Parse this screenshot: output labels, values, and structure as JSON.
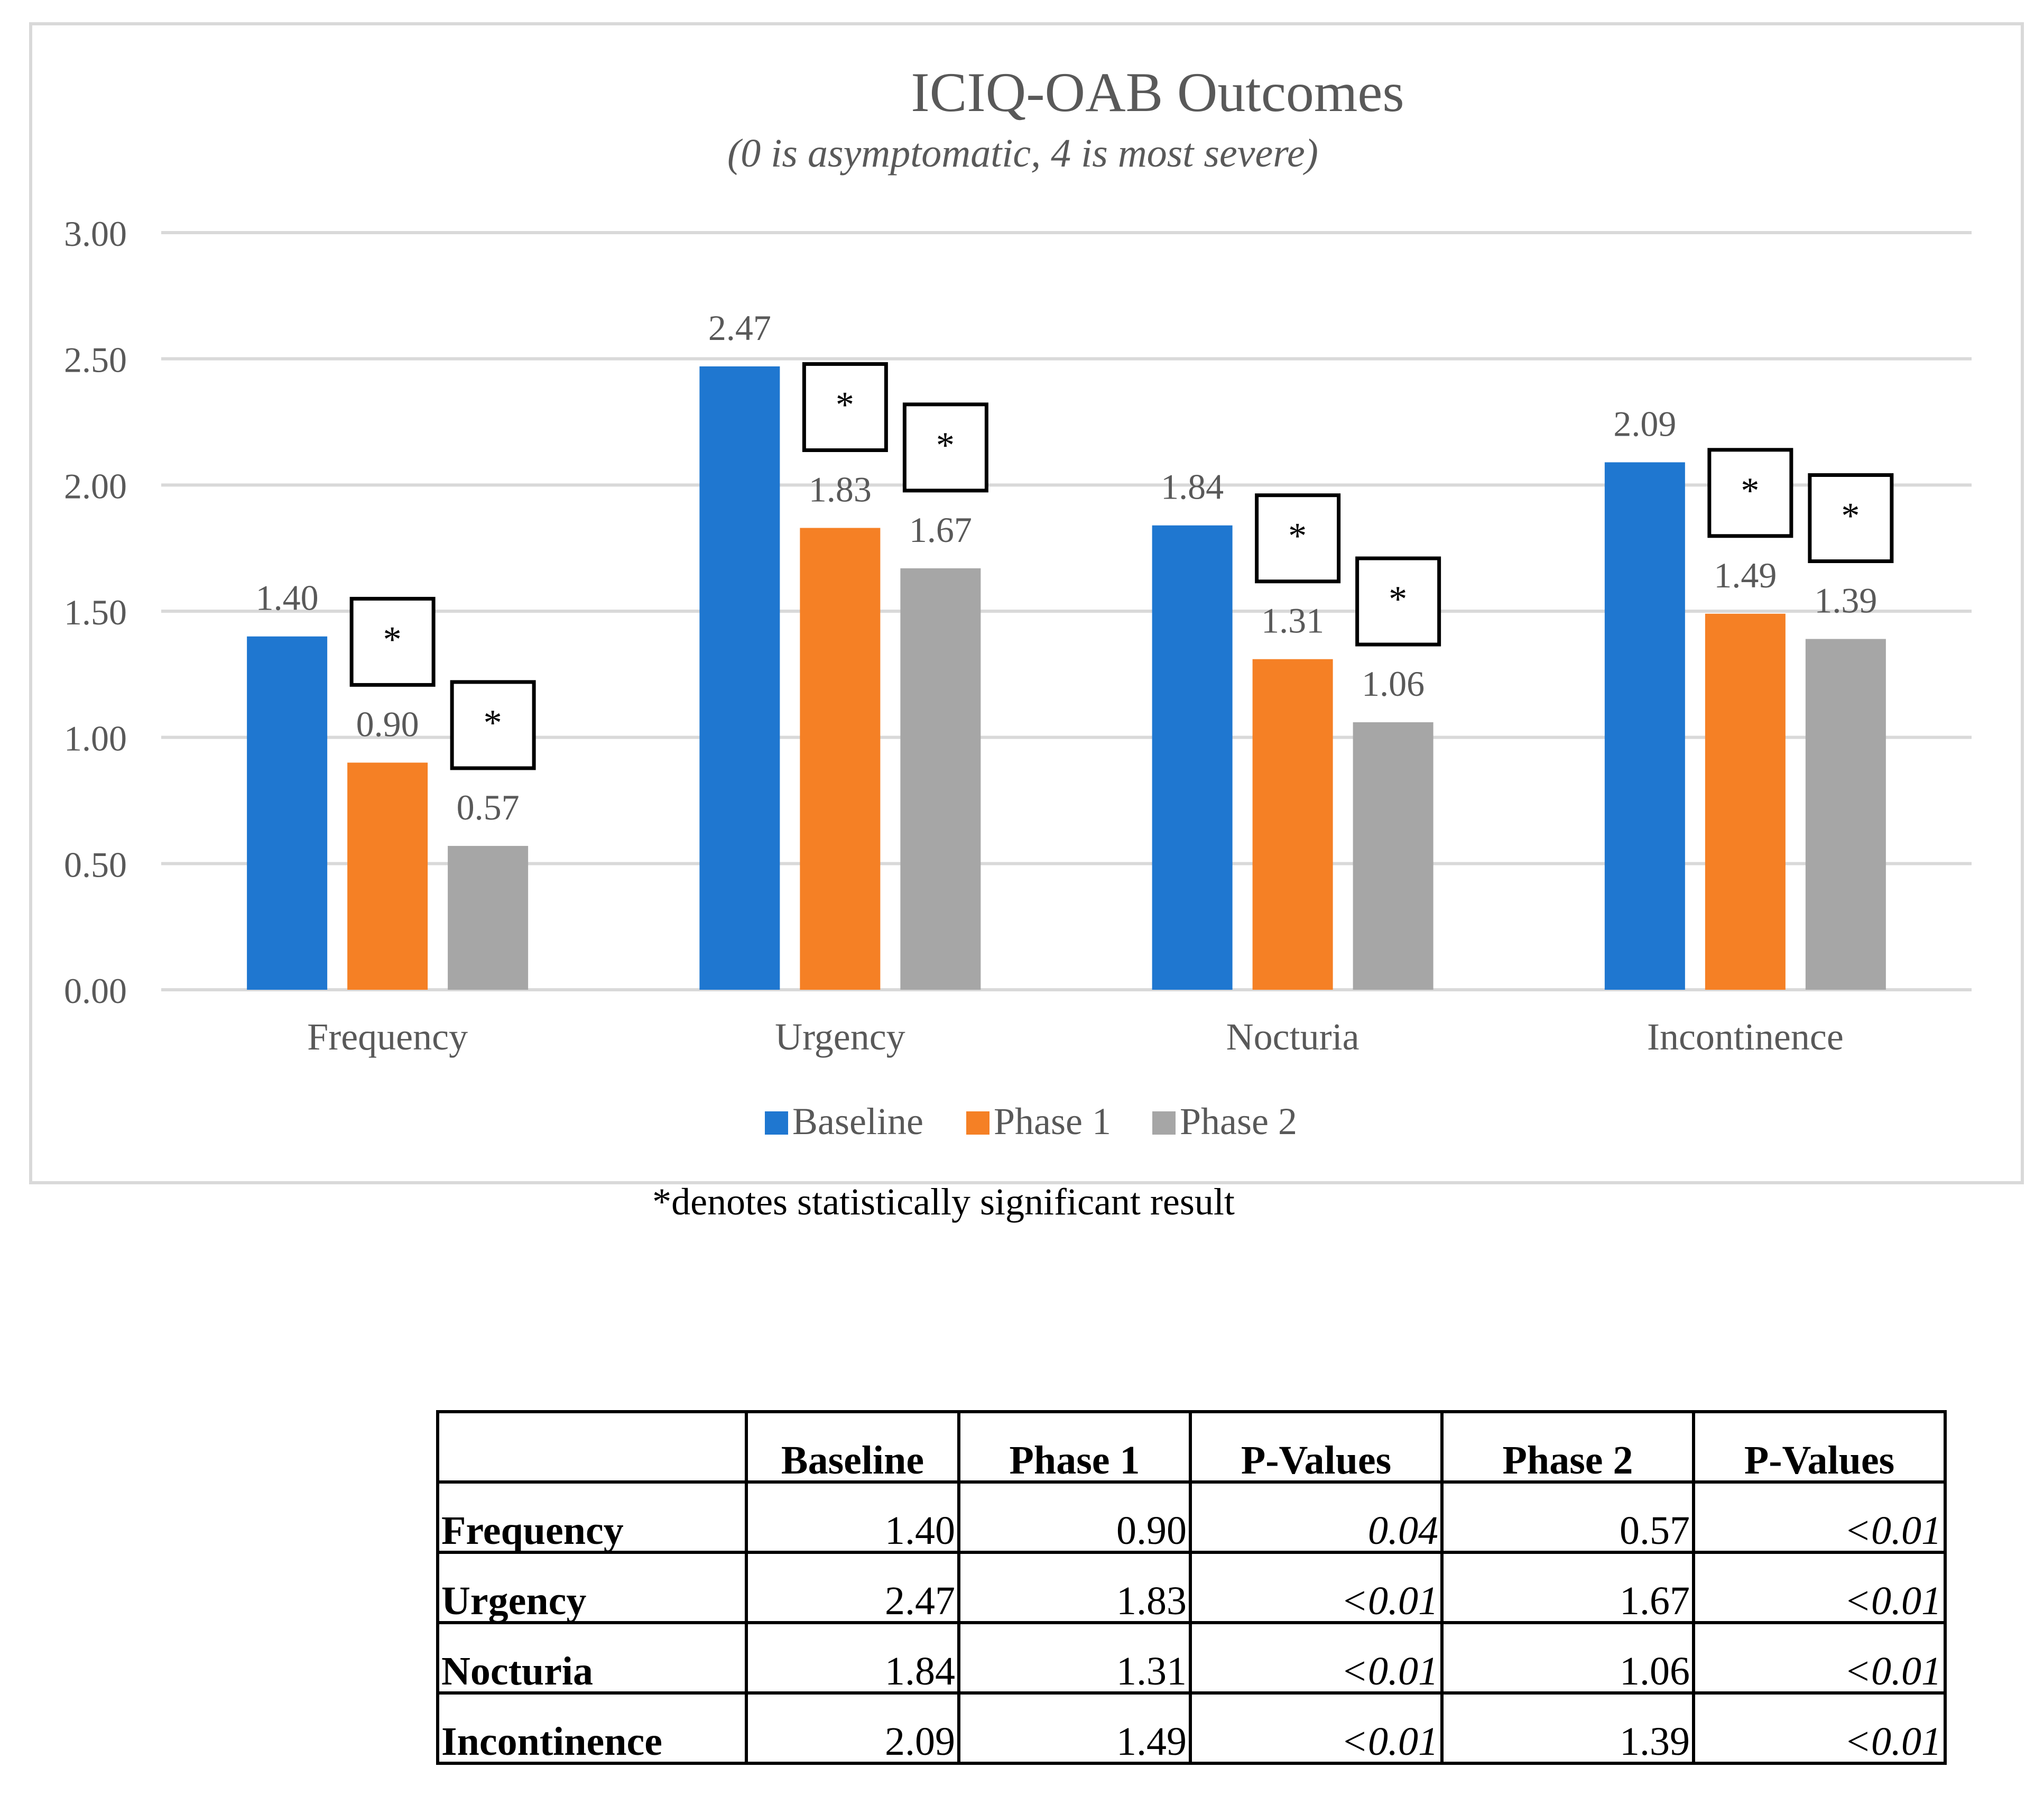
{
  "chart_data": {
    "type": "bar",
    "title": "ICIQ-OAB Outcomes",
    "subtitle": "(0 is asymptomatic, 4 is most severe)",
    "categories": [
      "Frequency",
      "Urgency",
      "Nocturia",
      "Incontinence"
    ],
    "series": [
      {
        "name": "Baseline",
        "color": "#1f77d0",
        "values": [
          1.4,
          2.47,
          1.84,
          2.09
        ],
        "labels": [
          "1.40",
          "2.47",
          "1.84",
          "2.09"
        ],
        "significant": [
          false,
          false,
          false,
          false
        ]
      },
      {
        "name": "Phase 1",
        "color": "#f58025",
        "values": [
          0.9,
          1.83,
          1.31,
          1.49
        ],
        "labels": [
          "0.90",
          "1.83",
          "1.31",
          "1.49"
        ],
        "significant": [
          true,
          true,
          true,
          true
        ]
      },
      {
        "name": "Phase 2",
        "color": "#a6a6a6",
        "values": [
          0.57,
          1.67,
          1.06,
          1.39
        ],
        "labels": [
          "0.57",
          "1.67",
          "1.06",
          "1.39"
        ],
        "significant": [
          true,
          true,
          true,
          true
        ]
      }
    ],
    "ylim": [
      0,
      3
    ],
    "yticks": [
      "0.00",
      "0.50",
      "1.00",
      "1.50",
      "2.00",
      "2.50",
      "3.00"
    ],
    "xlabel": "",
    "ylabel": "",
    "grid": true,
    "legend": "bottom-center",
    "significance_marker": "*"
  },
  "note": "*denotes statistically significant result",
  "table": {
    "headers": [
      "",
      "Baseline",
      "Phase 1",
      "P-Values",
      "Phase 2",
      "P-Values"
    ],
    "rows": [
      {
        "label": "Frequency",
        "baseline": "1.40",
        "phase1": "0.90",
        "p1": "0.04",
        "phase2": "0.57",
        "p2": "<0.01"
      },
      {
        "label": "Urgency",
        "baseline": "2.47",
        "phase1": "1.83",
        "p1": "<0.01",
        "phase2": "1.67",
        "p2": "<0.01"
      },
      {
        "label": "Nocturia",
        "baseline": "1.84",
        "phase1": "1.31",
        "p1": "<0.01",
        "phase2": "1.06",
        "p2": "<0.01"
      },
      {
        "label": "Incontinence",
        "baseline": "2.09",
        "phase1": "1.49",
        "p1": "<0.01",
        "phase2": "1.39",
        "p2": "<0.01"
      }
    ]
  }
}
